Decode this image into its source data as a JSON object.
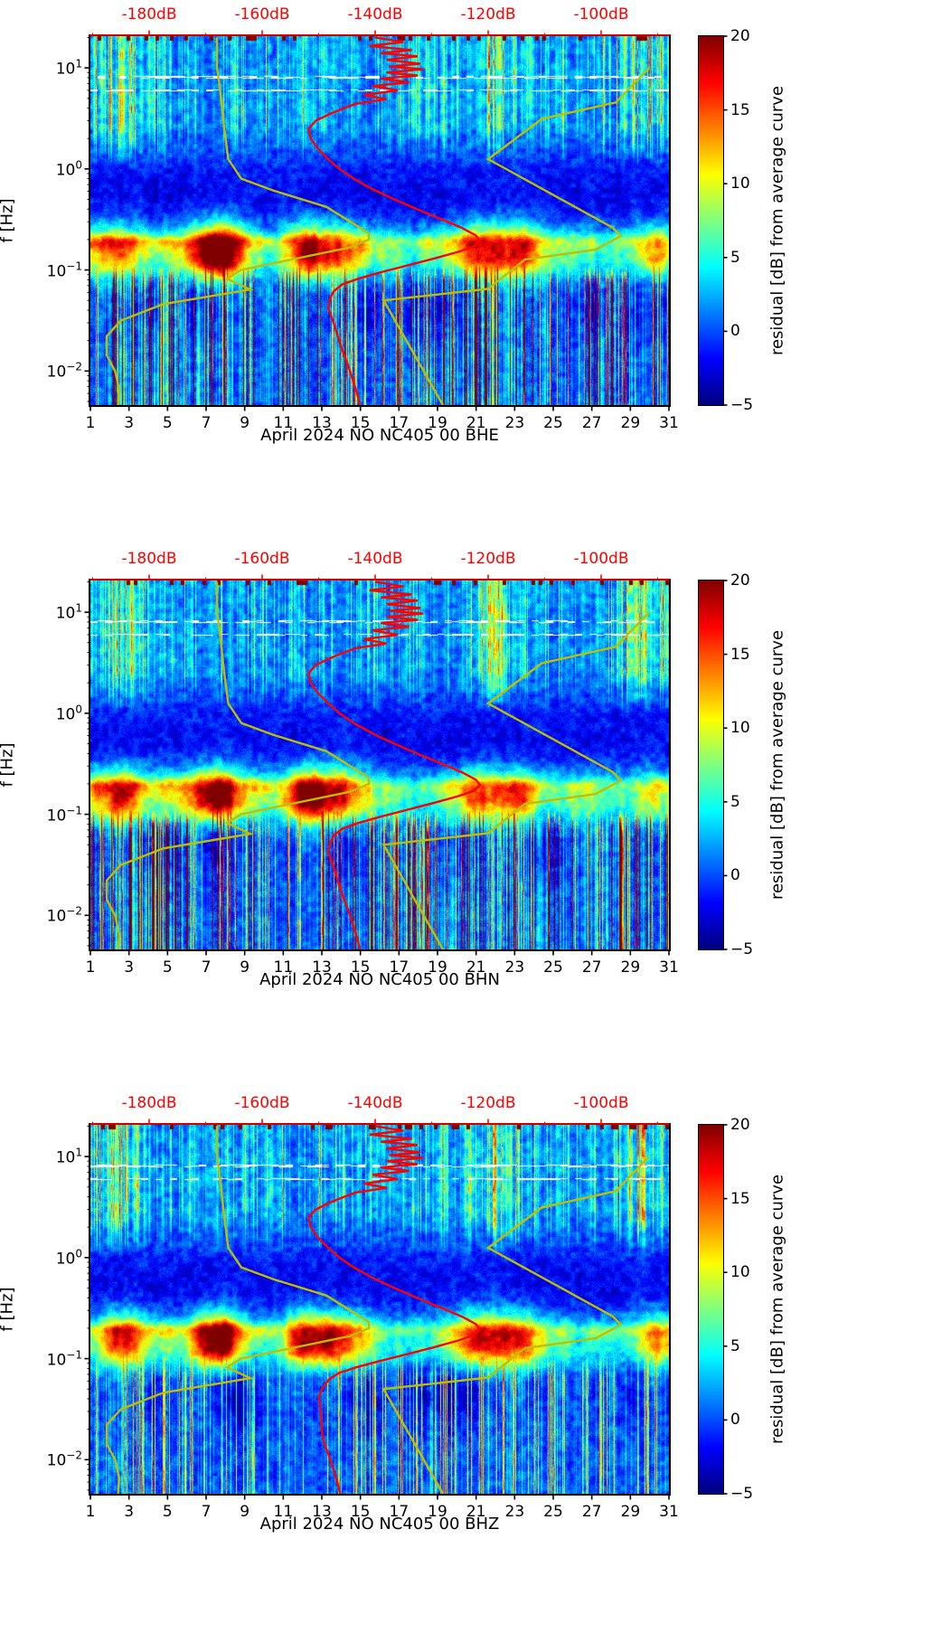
{
  "chart_data": {
    "type": "heatmap",
    "panels": [
      {
        "channel": "BHE",
        "xlabel": "April 2024 NO NC405 00 BHE",
        "seed": 11,
        "lowf_stripe_gain": 1.0,
        "highf_stripe_gain": 1.0,
        "avg_lowf_offset_db": 0
      },
      {
        "channel": "BHN",
        "xlabel": "April 2024 NO NC405 00 BHN",
        "seed": 23,
        "lowf_stripe_gain": 1.05,
        "highf_stripe_gain": 0.95,
        "avg_lowf_offset_db": 0
      },
      {
        "channel": "BHZ",
        "xlabel": "April 2024 NO NC405 00 BHZ",
        "seed": 37,
        "lowf_stripe_gain": 0.5,
        "highf_stripe_gain": 1.0,
        "avg_lowf_offset_db": -3.5
      }
    ],
    "x": {
      "tick_days": [
        1,
        3,
        5,
        7,
        9,
        11,
        13,
        15,
        17,
        19,
        21,
        23,
        25,
        27,
        29,
        31
      ],
      "min_day": 1,
      "max_day": 31
    },
    "y": {
      "label": "f [Hz]",
      "min_hz": 0.0046,
      "max_hz": 20.6,
      "tick_exponents": [
        1,
        0,
        -1,
        -2
      ]
    },
    "top_axis": {
      "color": "#ff0000",
      "min_db": -190.4,
      "max_db": -88.0,
      "ticks_db": [
        -180,
        -160,
        -140,
        -120,
        -100
      ],
      "tick_labels": [
        "-180dB",
        "-160dB",
        "-140dB",
        "-120dB",
        "-100dB"
      ]
    },
    "colorbar": {
      "label": "residual [dB] from average curve",
      "min": -5,
      "max": 20,
      "ticks": [
        20,
        15,
        10,
        5,
        0,
        -5
      ],
      "colormap": "jet"
    },
    "colors": {
      "curve_red": "#ff0000",
      "curve_yellow": "#bfbf00",
      "spine_top": "#cc0000"
    },
    "curves": {
      "nlnm_db": [
        [
          20,
          -168.0
        ],
        [
          10,
          -168.0
        ],
        [
          7.1,
          -167.6
        ],
        [
          2.5,
          -166.7
        ],
        [
          1.25,
          -166.0
        ],
        [
          0.8,
          -163.7
        ],
        [
          0.61,
          -158.0
        ],
        [
          0.42,
          -148.6
        ],
        [
          0.23,
          -141.1
        ],
        [
          0.2,
          -141.1
        ],
        [
          0.167,
          -144.5
        ],
        [
          0.1,
          -163.8
        ],
        [
          0.082,
          -166.2
        ],
        [
          0.064,
          -162.1
        ],
        [
          0.046,
          -177.5
        ],
        [
          0.0316,
          -185.0
        ],
        [
          0.0222,
          -187.5
        ],
        [
          0.0143,
          -187.5
        ],
        [
          0.0099,
          -186.0
        ],
        [
          0.0065,
          -185.3
        ],
        [
          0.0046,
          -185.5
        ]
      ],
      "nhnm_db": [
        [
          10,
          -91.5
        ],
        [
          4.55,
          -97.4
        ],
        [
          3.13,
          -110.5
        ],
        [
          1.25,
          -120.0
        ],
        [
          0.263,
          -98.0
        ],
        [
          0.217,
          -96.5
        ],
        [
          0.159,
          -101.0
        ],
        [
          0.127,
          -113.5
        ],
        [
          0.065,
          -120.0
        ],
        [
          0.05,
          -138.5
        ],
        [
          0.0046,
          -128.0
        ]
      ],
      "average_psd_db": [
        [
          20,
          -140
        ],
        [
          18,
          -135
        ],
        [
          16.5,
          -141
        ],
        [
          15,
          -133.5
        ],
        [
          14,
          -139
        ],
        [
          13,
          -132.5
        ],
        [
          12,
          -138
        ],
        [
          11,
          -132
        ],
        [
          10.3,
          -137.5
        ],
        [
          9.7,
          -131.5
        ],
        [
          9,
          -138
        ],
        [
          8.4,
          -132.5
        ],
        [
          7.8,
          -139
        ],
        [
          7.2,
          -134
        ],
        [
          6.6,
          -140.5
        ],
        [
          6,
          -136
        ],
        [
          5.4,
          -142
        ],
        [
          4.9,
          -138
        ],
        [
          4.4,
          -143.5
        ],
        [
          3.9,
          -146
        ],
        [
          3.4,
          -148.5
        ],
        [
          3,
          -150.5
        ],
        [
          2.5,
          -151.8
        ],
        [
          2,
          -151.4
        ],
        [
          1.6,
          -150.2
        ],
        [
          1.25,
          -148.3
        ],
        [
          1,
          -146.3
        ],
        [
          0.8,
          -143.8
        ],
        [
          0.63,
          -140.5
        ],
        [
          0.5,
          -136.6
        ],
        [
          0.4,
          -132.6
        ],
        [
          0.32,
          -128.4
        ],
        [
          0.26,
          -124.6
        ],
        [
          0.22,
          -122.2
        ],
        [
          0.195,
          -121.4
        ],
        [
          0.17,
          -122.6
        ],
        [
          0.15,
          -125.5
        ],
        [
          0.13,
          -129.5
        ],
        [
          0.11,
          -134.5
        ],
        [
          0.095,
          -139
        ],
        [
          0.082,
          -143
        ],
        [
          0.072,
          -145.8
        ],
        [
          0.062,
          -147.3
        ],
        [
          0.052,
          -148
        ],
        [
          0.042,
          -148.3
        ],
        [
          0.033,
          -147.6
        ],
        [
          0.026,
          -147
        ],
        [
          0.02,
          -146.4
        ],
        [
          0.015,
          -145.6
        ],
        [
          0.011,
          -144.7
        ],
        [
          0.008,
          -143.9
        ],
        [
          0.006,
          -143.2
        ],
        [
          0.0046,
          -142.7
        ]
      ]
    },
    "features": {
      "clim": [
        -5,
        20
      ],
      "microseism_band": {
        "log10f_center": -0.85,
        "sigma_above": 0.21,
        "sigma_below": 0.16,
        "base_amp": 4.0
      },
      "storm_events": [
        {
          "day": 7.6,
          "width_days": 0.9,
          "amp_db": 17
        },
        {
          "day": 13.6,
          "width_days": 1.3,
          "amp_db": 12
        },
        {
          "day": 2.6,
          "width_days": 0.8,
          "amp_db": 9
        },
        {
          "day": 12.0,
          "width_days": 0.6,
          "amp_db": 8
        },
        {
          "day": 21.2,
          "width_days": 1.0,
          "amp_db": 9
        },
        {
          "day": 23.3,
          "width_days": 0.7,
          "amp_db": 9
        },
        {
          "day": 30.2,
          "width_days": 0.6,
          "amp_db": 6
        }
      ],
      "secondary_microseism_streak": {
        "log10f": -0.72,
        "amp_db": 4.5
      },
      "quiet_band": {
        "log10f_center": -0.35,
        "sigma": 0.28,
        "amp_db": -2.2
      },
      "deep_quiet_patches": {
        "log10f_center": -1.35,
        "sigma": 0.25,
        "amp_db": -3.0
      },
      "masked_rows_log10f": [
        0.91,
        0.78
      ],
      "low_freq_stripe_cutoff_hz": 0.1,
      "high_freq_stripe_onset_hz": 1.0,
      "bright_high_freq_days": [
        2.2,
        21.8,
        29.8
      ]
    }
  }
}
